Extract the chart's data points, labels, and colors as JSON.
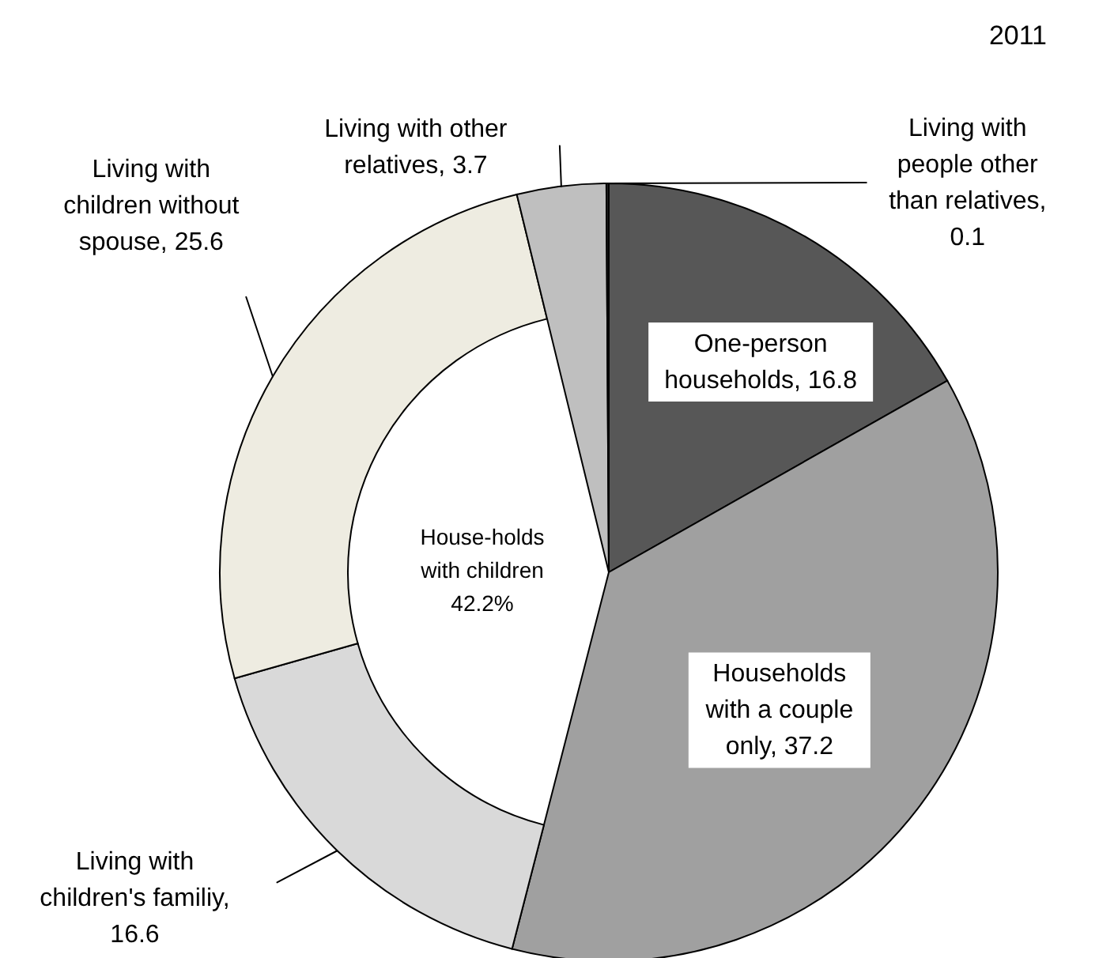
{
  "chart_data": {
    "type": "pie",
    "title": "2011",
    "categories": [
      "One-person households, 16.8",
      "Households with a couple only, 37.2",
      "Living with children's familiy, 16.6",
      "Living with children without spouse, 25.6",
      "Living with other relatives, 3.7",
      "Living with people other than relatives, 0.1"
    ],
    "values": [
      16.8,
      37.2,
      16.6,
      25.6,
      3.7,
      0.1
    ],
    "colors": [
      "#575757",
      "#a0a0a0",
      "#d9d9d9",
      "#eeece1",
      "#bfbfbf",
      "#262626"
    ],
    "annotations": [
      "House-holds with children 42.2%"
    ]
  }
}
